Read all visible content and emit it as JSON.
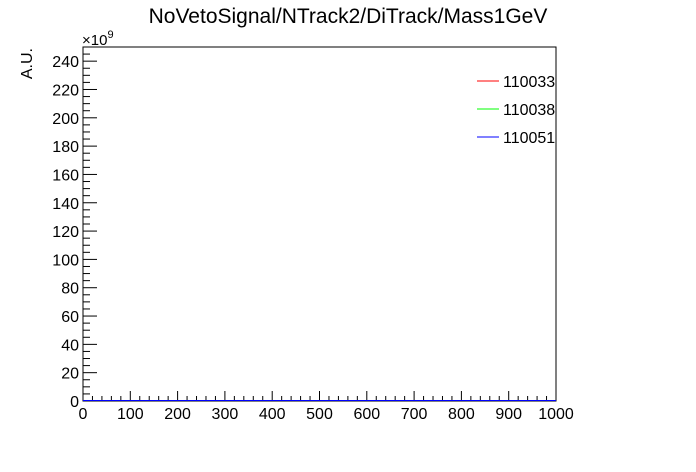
{
  "chart_data": {
    "type": "line",
    "title": "NoVetoSignal/NTrack2/DiTrack/Mass1GeV",
    "xlabel": "",
    "ylabel": "A.U.",
    "y_multiplier_label": "×10",
    "y_multiplier_exp": "9",
    "xlim": [
      0,
      1000
    ],
    "ylim": [
      0,
      250
    ],
    "x_ticks": [
      0,
      100,
      200,
      300,
      400,
      500,
      600,
      700,
      800,
      900,
      1000
    ],
    "y_ticks": [
      0,
      20,
      40,
      60,
      80,
      100,
      120,
      140,
      160,
      180,
      200,
      220,
      240
    ],
    "grid": false,
    "legend_position": "top-right",
    "series": [
      {
        "name": "110033",
        "color": "#ff0000",
        "x": [
          0,
          1000
        ],
        "y": [
          0,
          0
        ]
      },
      {
        "name": "110038",
        "color": "#00ff00",
        "x": [
          0,
          1000
        ],
        "y": [
          0,
          0
        ]
      },
      {
        "name": "110051",
        "color": "#0000ff",
        "x": [
          0,
          1000
        ],
        "y": [
          0,
          0
        ]
      }
    ]
  }
}
